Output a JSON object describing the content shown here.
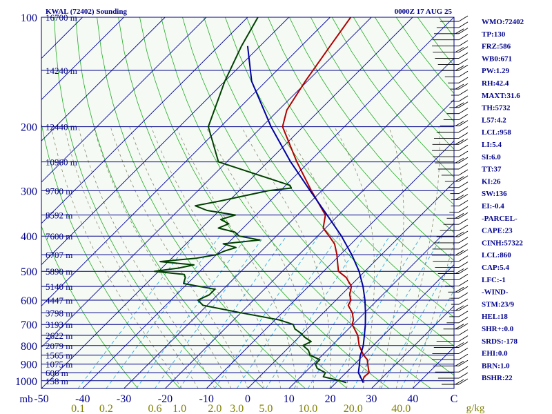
{
  "chart_data": {
    "type": "line",
    "title": "KWAL (72402) Sounding",
    "timestamp": "0000Z 17 AUG 25",
    "pressure_unit": "mb",
    "mixing_unit": "g/kg",
    "p_range": [
      100,
      1050
    ],
    "skew_range_at_1050": [
      -50,
      50
    ],
    "pressure_ticks": [
      100,
      200,
      300,
      400,
      500,
      600,
      700,
      800,
      900,
      1000
    ],
    "temp_ticks": [
      -50,
      -40,
      -30,
      -20,
      -10,
      0,
      10,
      20,
      30,
      40,
      50
    ],
    "temp_tick_labels": [
      "-50",
      "-40",
      "-30",
      "-20",
      "-10",
      "0",
      "10",
      "20",
      "30",
      "40",
      "C"
    ],
    "mixing_labels": [
      "0.1",
      "0.2",
      "0.6",
      "1.0",
      "2.0",
      "3.0",
      "5.0",
      "10.0",
      "20.0",
      "40.0"
    ],
    "height_levels": [
      {
        "p": 100,
        "label": "16700 m"
      },
      {
        "p": 140,
        "label": "14240 m"
      },
      {
        "p": 200,
        "label": "12440 m"
      },
      {
        "p": 250,
        "label": "10960 m"
      },
      {
        "p": 300,
        "label": "9700 m"
      },
      {
        "p": 350,
        "label": "8592 m"
      },
      {
        "p": 400,
        "label": "7600 m"
      },
      {
        "p": 450,
        "label": "6707 m"
      },
      {
        "p": 500,
        "label": "5890 m"
      },
      {
        "p": 550,
        "label": "5140 m"
      },
      {
        "p": 600,
        "label": "4447 m"
      },
      {
        "p": 650,
        "label": "3798 m"
      },
      {
        "p": 700,
        "label": "3193 m"
      },
      {
        "p": 750,
        "label": "2622 m"
      },
      {
        "p": 800,
        "label": "2079 m"
      },
      {
        "p": 850,
        "label": "1565 m"
      },
      {
        "p": 900,
        "label": "1075 m"
      },
      {
        "p": 950,
        "label": "606 m"
      },
      {
        "p": 1000,
        "label": "158 m"
      }
    ],
    "series": [
      {
        "role": "temperature",
        "color": "#b00000",
        "p": [
          1012,
          1000,
          975,
          950,
          925,
          900,
          875,
          850,
          800,
          750,
          700,
          680,
          650,
          620,
          600,
          580,
          550,
          520,
          500,
          470,
          450,
          420,
          400,
          380,
          350,
          300,
          250,
          200,
          180,
          150,
          120,
          100
        ],
        "t": [
          26.6,
          26.0,
          25.4,
          25.6,
          24.4,
          23.2,
          22.0,
          20.0,
          16.6,
          13.8,
          9.8,
          9.0,
          7.0,
          4.2,
          3.6,
          2.0,
          0.4,
          -3.0,
          -6.4,
          -9.0,
          -10.8,
          -14.0,
          -17.2,
          -20.6,
          -23.2,
          -32.5,
          -43.0,
          -55.0,
          -58.0,
          -60.5,
          -63.0,
          -65.0
        ]
      },
      {
        "role": "dewpoint",
        "color": "#004000",
        "p": [
          1012,
          1000,
          975,
          950,
          925,
          900,
          875,
          850,
          825,
          800,
          780,
          760,
          740,
          720,
          700,
          680,
          650,
          620,
          600,
          580,
          560,
          540,
          520,
          510,
          500,
          490,
          480,
          470,
          460,
          450,
          440,
          430,
          420,
          410,
          400,
          390,
          380,
          370,
          360,
          350,
          340,
          330,
          320,
          300,
          295,
          290,
          250,
          200,
          150,
          120,
          100
        ],
        "t": [
          22.5,
          20.5,
          15.5,
          15.0,
          12.0,
          10.5,
          10.5,
          7.0,
          5.5,
          3.0,
          4.0,
          1.5,
          -0.5,
          -3.0,
          -4.5,
          -9.0,
          -20.0,
          -31.0,
          -33.5,
          -32.0,
          -32.0,
          -41.0,
          -42.0,
          -43.0,
          -51.0,
          -46.0,
          -43.0,
          -52.0,
          -44.0,
          -40.0,
          -39.0,
          -37.0,
          -41.0,
          -33.0,
          -39.0,
          -41.0,
          -46.0,
          -44.5,
          -47.5,
          -45.0,
          -53.0,
          -57.0,
          -52.0,
          -43.0,
          -38.0,
          -39.0,
          -62.0,
          -73.0,
          -80.0,
          -84.5,
          -87.5
        ]
      },
      {
        "role": "parcel",
        "color": "#0000a0",
        "p": [
          1012,
          950,
          900,
          858,
          800,
          750,
          700,
          650,
          600,
          550,
          500,
          450,
          400,
          350,
          300,
          250,
          200,
          150,
          120
        ],
        "t": [
          26.6,
          23.0,
          21.2,
          19.5,
          17.6,
          15.4,
          13.0,
          10.2,
          7.0,
          3.2,
          -1.4,
          -7.2,
          -14.2,
          -22.8,
          -32.8,
          -44.5,
          -57.8,
          -73.5,
          -83.0
        ]
      }
    ],
    "wind_barbs_count": 60,
    "indices": [
      "WMO:72402",
      "TP:130",
      "FRZ:586",
      "WB0:671",
      "PW:1.29",
      "RH:42.4",
      "MAXT:31.6",
      "TH:5732",
      "L57:4.2",
      "LCL:958",
      "LI:5.4",
      "SI:6.0",
      "TT:37",
      "KI:26",
      "SW:136",
      "EI:-0.4",
      "-PARCEL-",
      "CAPE:23",
      "CINH:57322",
      "LCL:860",
      "CAP:5.4",
      "LFC:-1",
      "-WIND-",
      "STM:23/9",
      "HEL:18",
      "SHR+:0.0",
      "SRDS:-178",
      "EHI:0.0",
      "BRN:1.0",
      "BSHR:22"
    ]
  }
}
